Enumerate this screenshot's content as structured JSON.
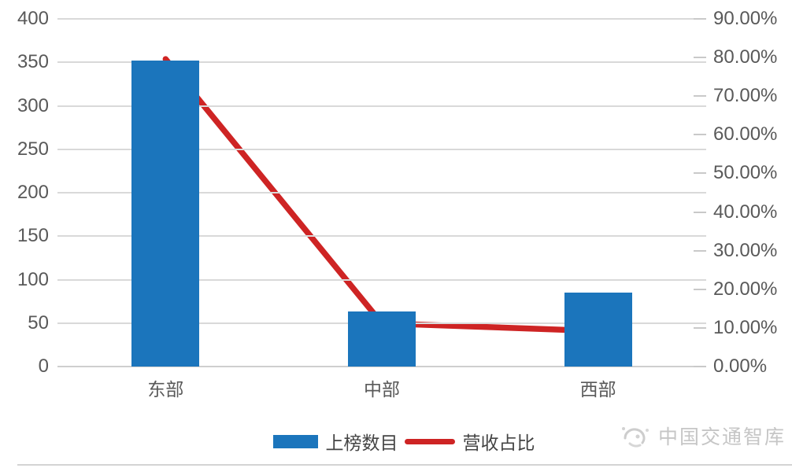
{
  "chart_data": {
    "type": "bar",
    "subtype": "combo-bar-line",
    "title": "",
    "categories": [
      "东部",
      "中部",
      "西部"
    ],
    "series": [
      {
        "name": "上榜数目",
        "type": "bar",
        "axis": "left",
        "values": [
          352,
          63,
          85
        ],
        "color": "#1b75bc"
      },
      {
        "name": "营收占比",
        "type": "line",
        "axis": "right",
        "unit": "%",
        "values": [
          79.6,
          11.2,
          9.2
        ],
        "color": "#ce2424"
      }
    ],
    "left_axis": {
      "min": 0,
      "max": 400,
      "step": 50,
      "tick_labels": [
        "400",
        "350",
        "300",
        "250",
        "200",
        "150",
        "100",
        "50",
        "0"
      ]
    },
    "right_axis": {
      "min": 0,
      "max": 90,
      "step": 10,
      "tick_labels": [
        "90.00%",
        "80.00%",
        "70.00%",
        "60.00%",
        "50.00%",
        "40.00%",
        "30.00%",
        "20.00%",
        "10.00%",
        "0.00%"
      ]
    },
    "grid": true,
    "legend_position": "bottom"
  },
  "legend": {
    "items": [
      {
        "label": "上榜数目",
        "swatch": "bar",
        "color": "#1b75bc"
      },
      {
        "label": "营收占比",
        "swatch": "line",
        "color": "#ce2424"
      }
    ]
  },
  "watermark": {
    "text": "中国交通智库",
    "icon": "cloud-swirl-logo"
  },
  "colors": {
    "bar": "#1b75bc",
    "line": "#ce2424",
    "grid": "#d9d9d9",
    "axis_text": "#595959",
    "watermark": "#c6c6c6",
    "background": "#ffffff"
  }
}
